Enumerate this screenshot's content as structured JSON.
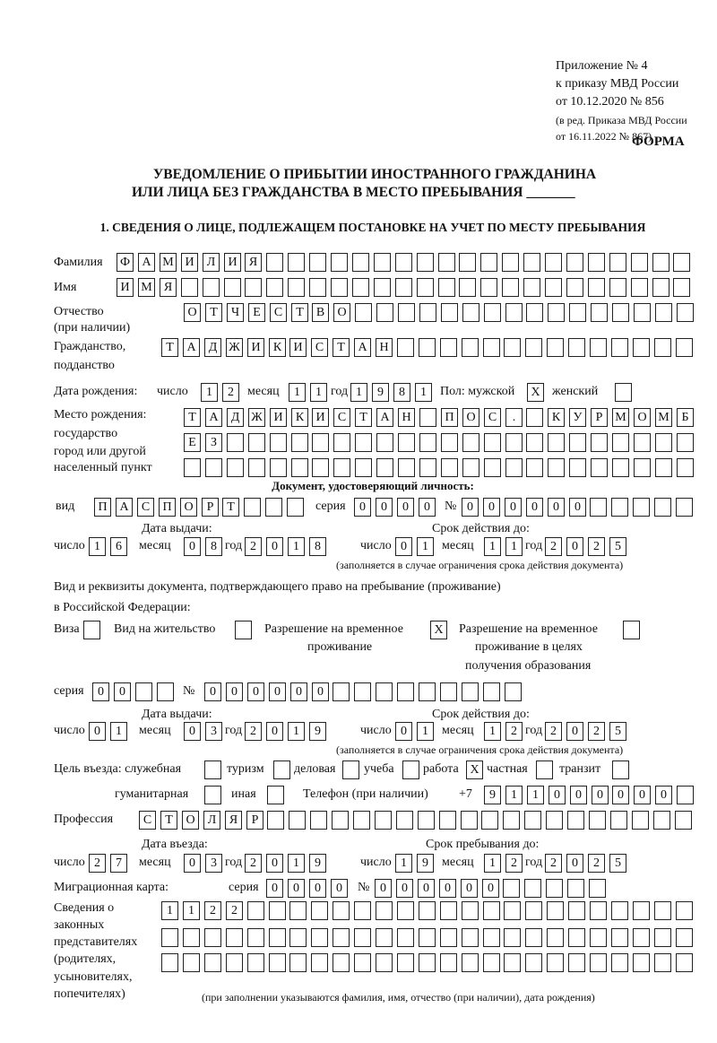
{
  "header": {
    "appendix": "Приложение № 4",
    "order": "к приказу МВД России",
    "order_date": "от 10.12.2020 № 856",
    "revision_1": "(в ред. Приказа МВД России",
    "revision_2": "от 16.11.2022 № 867)",
    "form_label": "ФОРМА",
    "title_1": "УВЕДОМЛЕНИЕ О ПРИБЫТИИ ИНОСТРАННОГО ГРАЖДАНИНА",
    "title_2": "ИЛИ ЛИЦА БЕЗ ГРАЖДАНСТВА В МЕСТО ПРЕБЫВАНИЯ",
    "title_blank": "_______",
    "section_1": "1. СВЕДЕНИЯ О ЛИЦЕ, ПОДЛЕЖАЩЕМ ПОСТАНОВКЕ НА УЧЕТ ПО МЕСТУ ПРЕБЫВАНИЯ"
  },
  "labels": {
    "surname": "Фамилия",
    "name": "Имя",
    "patronymic": "Отчество",
    "patronymic_note": "(при наличии)",
    "citizenship": "Гражданство,",
    "citizenship_2": "подданство",
    "birth_date": "Дата рождения:",
    "day": "число",
    "month": "месяц",
    "year": "год",
    "sex": "Пол: мужской",
    "female": "женский",
    "birthplace_1": "Место рождения:",
    "birthplace_2": "государство",
    "birthplace_3": "город или другой",
    "birthplace_4": "населенный пункт",
    "id_doc": "Документ, удостоверяющий личность:",
    "kind": "вид",
    "series": "серия",
    "number": "№",
    "issue_date": "Дата выдачи:",
    "valid_until": "Срок действия до:",
    "validity_note": "(заполняется в случае ограничения срока действия документа)",
    "right_doc_1": "Вид и реквизиты документа, подтверждающего право на пребывание (проживание)",
    "right_doc_2": "в Российской Федерации:",
    "visa": "Виза",
    "residence": "Вид на жительство",
    "temp_permit_1": "Разрешение на временное",
    "temp_permit_2": "проживание",
    "edu_permit_1": "Разрешение на временное",
    "edu_permit_2": "проживание в целях",
    "edu_permit_3": "получения образования",
    "purpose": "Цель въезда: служебная",
    "tourism": "туризм",
    "business": "деловая",
    "study": "учеба",
    "work": "работа",
    "private": "частная",
    "transit": "транзит",
    "humanitarian": "гуманитарная",
    "other": "иная",
    "phone": "Телефон (при наличии)",
    "phone_prefix": "+7",
    "profession": "Профессия",
    "entry_date": "Дата въезда:",
    "stay_until": "Срок пребывания до:",
    "migration_card": "Миграционная карта:",
    "reps_1": "Сведения о",
    "reps_2": "законных",
    "reps_3": "представителях",
    "reps_4": "(родителях,",
    "reps_5": "усыновителях,",
    "reps_6": "попечителях)",
    "reps_note": "(при заполнении указываются фамилия, имя, отчество (при наличии), дата рождения)"
  },
  "fields": {
    "surname": [
      "Ф",
      "А",
      "М",
      "И",
      "Л",
      "И",
      "Я",
      "",
      "",
      "",
      "",
      "",
      "",
      "",
      "",
      "",
      "",
      "",
      "",
      "",
      "",
      "",
      "",
      "",
      "",
      "",
      ""
    ],
    "name": [
      "И",
      "М",
      "Я",
      "",
      "",
      "",
      "",
      "",
      "",
      "",
      "",
      "",
      "",
      "",
      "",
      "",
      "",
      "",
      "",
      "",
      "",
      "",
      "",
      "",
      "",
      "",
      ""
    ],
    "patronymic": [
      "О",
      "Т",
      "Ч",
      "Е",
      "С",
      "Т",
      "В",
      "О",
      "",
      "",
      "",
      "",
      "",
      "",
      "",
      "",
      "",
      "",
      "",
      "",
      "",
      "",
      "",
      ""
    ],
    "citizenship": [
      "Т",
      "А",
      "Д",
      "Ж",
      "И",
      "К",
      "И",
      "С",
      "Т",
      "А",
      "Н",
      "",
      "",
      "",
      "",
      "",
      "",
      "",
      "",
      "",
      "",
      "",
      "",
      "",
      ""
    ],
    "birth_day": [
      "1",
      "2"
    ],
    "birth_month": [
      "1",
      "1"
    ],
    "birth_year": [
      "1",
      "9",
      "8",
      "1"
    ],
    "sex_male": "X",
    "sex_female": "",
    "birthplace_1": [
      "Т",
      "А",
      "Д",
      "Ж",
      "И",
      "К",
      "И",
      "С",
      "Т",
      "А",
      "Н",
      "",
      "П",
      "О",
      "С",
      ".",
      "",
      "К",
      "У",
      "Р",
      "М",
      "О",
      "М",
      "Б"
    ],
    "birthplace_2": [
      "Е",
      "З",
      "",
      "",
      "",
      "",
      "",
      "",
      "",
      "",
      "",
      "",
      "",
      "",
      "",
      "",
      "",
      "",
      "",
      "",
      "",
      "",
      "",
      ""
    ],
    "birthplace_3": [
      "",
      "",
      "",
      "",
      "",
      "",
      "",
      "",
      "",
      "",
      "",
      "",
      "",
      "",
      "",
      "",
      "",
      "",
      "",
      "",
      "",
      "",
      "",
      ""
    ],
    "id_kind": [
      "П",
      "А",
      "С",
      "П",
      "О",
      "Р",
      "Т",
      "",
      "",
      ""
    ],
    "id_series": [
      "0",
      "0",
      "0",
      "0"
    ],
    "id_number": [
      "0",
      "0",
      "0",
      "0",
      "0",
      "0",
      "",
      "",
      "",
      "",
      ""
    ],
    "id_issue_day": [
      "1",
      "6"
    ],
    "id_issue_month": [
      "0",
      "8"
    ],
    "id_issue_year": [
      "2",
      "0",
      "1",
      "8"
    ],
    "id_valid_day": [
      "0",
      "1"
    ],
    "id_valid_month": [
      "1",
      "1"
    ],
    "id_valid_year": [
      "2",
      "0",
      "2",
      "5"
    ],
    "doc_visa": "",
    "doc_residence": "",
    "doc_temp_permit": "X",
    "doc_edu_permit": "",
    "permit_series": [
      "0",
      "0",
      "",
      ""
    ],
    "permit_number": [
      "0",
      "0",
      "0",
      "0",
      "0",
      "0",
      "",
      "",
      "",
      "",
      "",
      "",
      "",
      "",
      ""
    ],
    "permit_issue_day": [
      "0",
      "1"
    ],
    "permit_issue_month": [
      "0",
      "3"
    ],
    "permit_issue_year": [
      "2",
      "0",
      "1",
      "9"
    ],
    "permit_valid_day": [
      "0",
      "1"
    ],
    "permit_valid_month": [
      "1",
      "2"
    ],
    "permit_valid_year": [
      "2",
      "0",
      "2",
      "5"
    ],
    "purpose_official": "",
    "purpose_tourism": "",
    "purpose_business": "",
    "purpose_study": "",
    "purpose_work": "X",
    "purpose_private": "",
    "purpose_transit": "",
    "purpose_humanitarian": "",
    "purpose_other": "",
    "phone": [
      "9",
      "1",
      "1",
      "0",
      "0",
      "0",
      "0",
      "0",
      "0",
      ""
    ],
    "profession": [
      "С",
      "Т",
      "О",
      "Л",
      "Я",
      "Р",
      "",
      "",
      "",
      "",
      "",
      "",
      "",
      "",
      "",
      "",
      "",
      "",
      "",
      "",
      "",
      "",
      "",
      "",
      "",
      ""
    ],
    "entry_day": [
      "2",
      "7"
    ],
    "entry_month": [
      "0",
      "3"
    ],
    "entry_year": [
      "2",
      "0",
      "1",
      "9"
    ],
    "stay_day": [
      "1",
      "9"
    ],
    "stay_month": [
      "1",
      "2"
    ],
    "stay_year": [
      "2",
      "0",
      "2",
      "5"
    ],
    "mig_series": [
      "0",
      "0",
      "0",
      "0"
    ],
    "mig_number": [
      "0",
      "0",
      "0",
      "0",
      "0",
      "0",
      "",
      "",
      "",
      "",
      ""
    ],
    "reps_1": [
      "1",
      "1",
      "2",
      "2",
      "",
      "",
      "",
      "",
      "",
      "",
      "",
      "",
      "",
      "",
      "",
      "",
      "",
      "",
      "",
      "",
      "",
      "",
      "",
      "",
      ""
    ],
    "reps_2": [
      "",
      "",
      "",
      "",
      "",
      "",
      "",
      "",
      "",
      "",
      "",
      "",
      "",
      "",
      "",
      "",
      "",
      "",
      "",
      "",
      "",
      "",
      "",
      "",
      ""
    ],
    "reps_3": [
      "",
      "",
      "",
      "",
      "",
      "",
      "",
      "",
      "",
      "",
      "",
      "",
      "",
      "",
      "",
      "",
      "",
      "",
      "",
      "",
      "",
      "",
      "",
      "",
      ""
    ]
  }
}
